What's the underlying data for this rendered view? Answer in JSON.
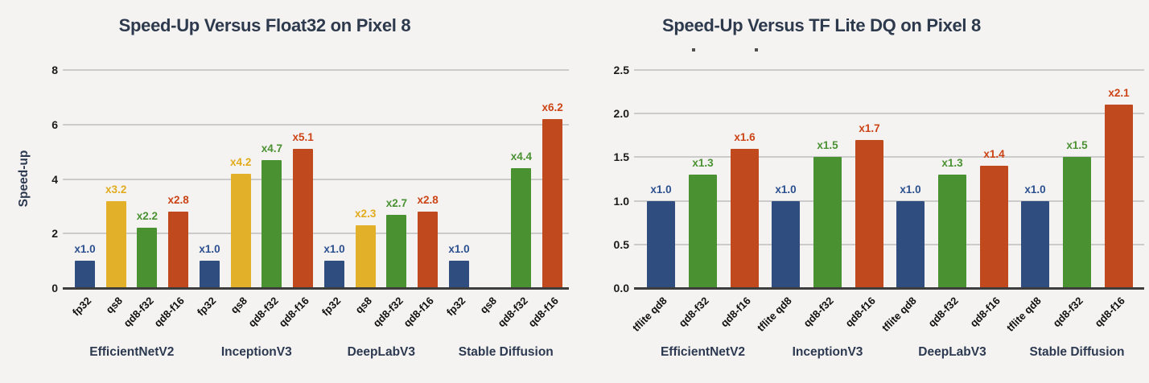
{
  "background_color": "#f4f3f1",
  "chart_data": [
    {
      "type": "bar",
      "title": "Speed-Up Versus Float32 on Pixel 8",
      "ylabel": "Speed-up",
      "xlabel": "",
      "ylim": [
        0,
        8
      ],
      "yticks": [
        "0",
        "2",
        "4",
        "6",
        "8"
      ],
      "grid": true,
      "legend": "none",
      "categories": [
        "EfficientNetV2",
        "InceptionV3",
        "DeepLabV3",
        "Stable Diffusion"
      ],
      "series": [
        {
          "name": "fp32",
          "color": "#2f4d7e",
          "label_color": "#2c508f",
          "values": [
            1.0,
            1.0,
            1.0,
            1.0
          ],
          "labels": [
            "x1.0",
            "x1.0",
            "x1.0",
            "x1.0"
          ]
        },
        {
          "name": "qs8",
          "color": "#e3b02a",
          "label_color": "#e2ab1e",
          "values": [
            3.2,
            4.2,
            2.3,
            null
          ],
          "labels": [
            "x3.2",
            "x4.2",
            "x2.3",
            null
          ]
        },
        {
          "name": "qd8-f32",
          "color": "#4a9132",
          "label_color": "#4a9132",
          "values": [
            2.2,
            4.7,
            2.7,
            4.4
          ],
          "labels": [
            "x2.2",
            "x4.7",
            "x2.7",
            "x4.4"
          ]
        },
        {
          "name": "qd8-f16",
          "color": "#c04a1d",
          "label_color": "#cc4315",
          "values": [
            2.8,
            5.1,
            2.8,
            6.2
          ],
          "labels": [
            "x2.8",
            "x5.1",
            "x2.8",
            "x6.2"
          ]
        }
      ]
    },
    {
      "type": "bar",
      "title": "Speed-Up Versus TF Lite DQ on Pixel 8",
      "ylabel": "",
      "xlabel": "",
      "ylim": [
        0,
        2.5
      ],
      "yticks": [
        "0.0",
        "0.5",
        "1.0",
        "1.5",
        "2.0",
        "2.5"
      ],
      "grid": true,
      "legend": "none",
      "categories": [
        "EfficientNetV2",
        "InceptionV3",
        "DeepLabV3",
        "Stable Diffusion"
      ],
      "series": [
        {
          "name": "tflite qd8",
          "color": "#2f4d7e",
          "label_color": "#2c508f",
          "values": [
            1.0,
            1.0,
            1.0,
            1.0
          ],
          "labels": [
            "x1.0",
            "x1.0",
            "x1.0",
            "x1.0"
          ]
        },
        {
          "name": "qd8-f32",
          "color": "#4a9132",
          "label_color": "#4a9132",
          "values": [
            1.3,
            1.5,
            1.3,
            1.5
          ],
          "labels": [
            "x1.3",
            "x1.5",
            "x1.3",
            "x1.5"
          ]
        },
        {
          "name": "qd8-f16",
          "color": "#c04a1d",
          "label_color": "#cc4315",
          "values": [
            1.6,
            1.7,
            1.4,
            2.1
          ],
          "labels": [
            "x1.6",
            "x1.7",
            "x1.4",
            "x2.1"
          ]
        }
      ]
    }
  ]
}
